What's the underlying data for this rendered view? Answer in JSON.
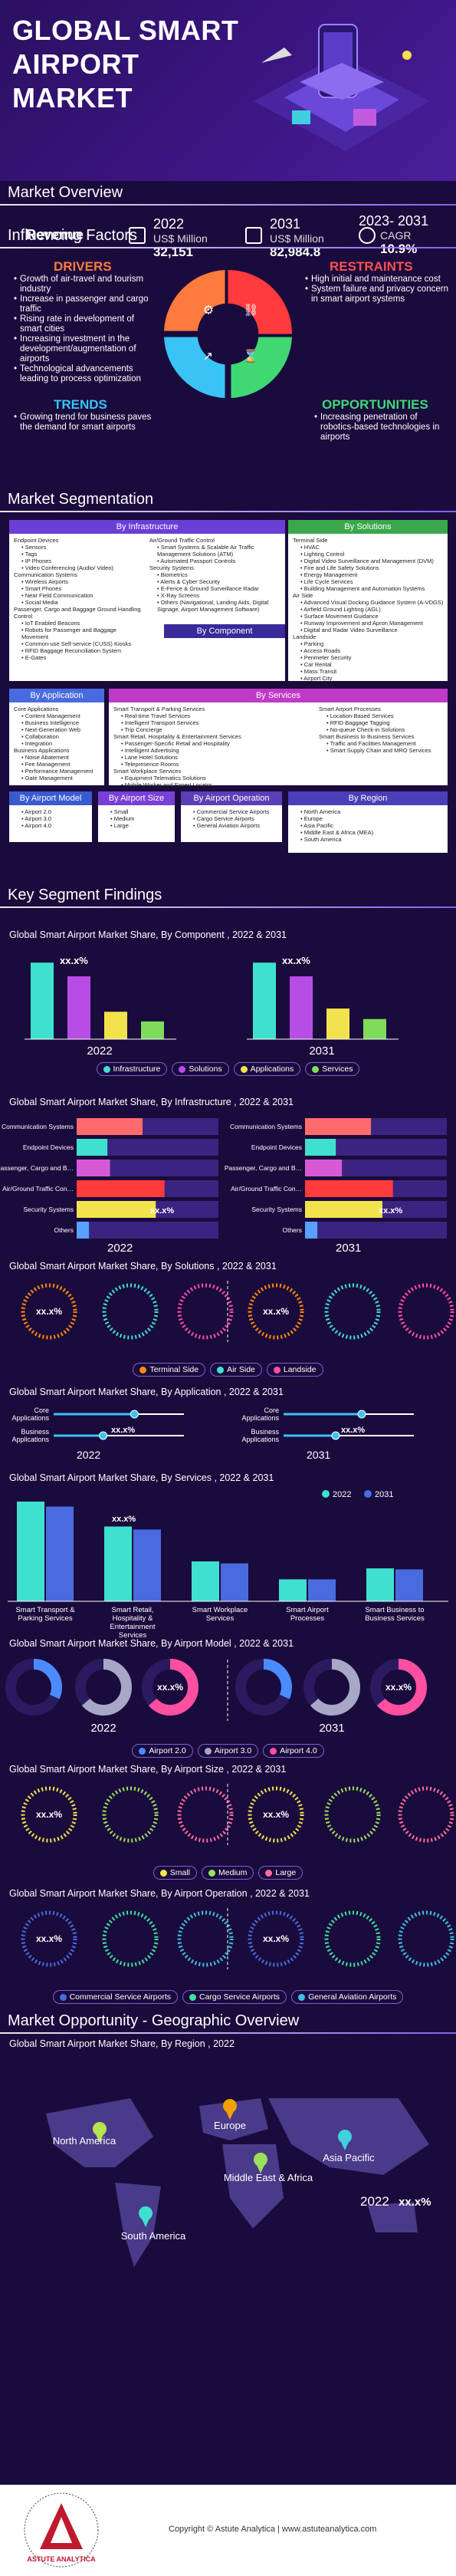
{
  "title": [
    "GLOBAL SMART",
    "AIRPORT",
    "MARKET"
  ],
  "sections": {
    "overview": "Market Overview",
    "factors": "Influencing Factors",
    "segmentation": "Market Segmentation",
    "findings": "Key Segment Findings",
    "geo": "Market Opportunity - Geographic Overview"
  },
  "overview": {
    "label": "Revenue",
    "items": [
      {
        "year": "2022",
        "unit": "US$ Million",
        "value": "32,151"
      },
      {
        "year": "2031",
        "unit": "US$ Million",
        "value": "82,984.8"
      },
      {
        "year": "2023- 2031",
        "unit": "CAGR",
        "value": "10.9%"
      }
    ]
  },
  "factors": {
    "drivers": {
      "head": "DRIVERS",
      "items": [
        "Growth of air-travel and tourism industry",
        "Increase in passenger and cargo traffic",
        "Rising rate in development of smart cities",
        "Increasing investment in the development/augmentation of airports",
        "Technological advancements leading to process optimization"
      ]
    },
    "restraints": {
      "head": "RESTRAINTS",
      "items": [
        "High initial and maintenance cost",
        "System failure and privacy concern in smart airport systems"
      ]
    },
    "trends": {
      "head": "TRENDS",
      "items": [
        "Growing trend for business paves the demand for smart airports"
      ]
    },
    "opportunities": {
      "head": "OPPORTUNITIES",
      "items": [
        "Increasing penetration of robotics-based technologies in airports"
      ]
    }
  },
  "segmentation": {
    "infra": {
      "head": "By Infrastructure",
      "col1": [
        "Endpoint Devices",
        "  - Sensors",
        "  - Tags",
        "  - IP Phones",
        "  - Video Conferencing (Audio/ Video)",
        "Communication Systems",
        "  - Wireless Airports",
        "  - Smart Phones",
        "  - Near Field Communication",
        "  - Social Media",
        "Passenger, Cargo and Baggage Ground Handling Control",
        "  - IoT Enabled Beacons",
        "  - Robots for Passenger and Baggage Movement",
        "  - Common-use Self-service (CUSS) Kiosks",
        "  - RFID Baggage Reconciliation System",
        "  - E-Gates"
      ],
      "col2": [
        "Air/Ground Traffic Control",
        "  - Smart Systems & Scalable Air Traffic Management Solutions (ATM)",
        "  - Automated Passport Controls",
        "Security Systems",
        "  - Biometrics",
        "  - Alerts & Cyber Security",
        "  - E-Fence & Ground Surveillance Radar",
        "  - X-Ray Screens",
        "  - Others (Navigational, Landing Aids, Digital Signage, Airport Management Software)"
      ]
    },
    "solutions": {
      "head": "By Solutions",
      "items": [
        "Terminal Side",
        "  - HVAC",
        "  - Lighting Control",
        "  - Digital Video Surveillance and Management (DVM)",
        "  - Fire and Life Safety Solutions",
        "  - Energy Management",
        "  - Life Cycle Services",
        "  - Building Management and Automation Systems",
        "Air Side",
        "  - Advanced Visual Docking Guidance System (A-VDGS)",
        "  - Airfield Ground Lighting (AGL)",
        "  - Surface Movement Guidance",
        "  - Runway Improvement and Apron Management",
        "  - Digital and Radar Video Surveillance",
        "Landside",
        "  - Parking",
        "  - Access Roads",
        "  - Perimeter Security",
        "  - Car Rental",
        "  - Mass Transit",
        "  - Airport City"
      ]
    },
    "component": {
      "head": "By Component",
      "items": [
        "Infrastructure",
        "Solutions",
        "Applications",
        "Services"
      ]
    },
    "application": {
      "head": "By Application",
      "items": [
        "Core Applications",
        "  - Content Management",
        "  - Business Intelligence",
        "  - Next-Generation Web",
        "  - Collaboration",
        "  - Integration",
        "Business Applications",
        "  - Noise Abatement",
        "  - Fee Management",
        "  - Performance Management",
        "  - Gate Management"
      ]
    },
    "services": {
      "head": "By Services",
      "col1": [
        "Smart Transport & Parking Services",
        "  - Real-time Travel Services",
        "  - Intelligent Transport Services",
        "  - Trip Concierge",
        "Smart Retail, Hospitality & Entertainment Services",
        "  - Passenger-Specific Retail and Hospitality",
        "  - Intelligent Advertising",
        "  - Lane Hotel Solutions",
        "  - Telepresence Rooms",
        "Smart Workplace Services",
        "  - Equipment Telematics Solutions",
        "  - Mobile Worker and Expert Locator"
      ],
      "col2": [
        "Smart Airport Processes",
        "  - Location-Based Services",
        "  - RFID Baggage Tagging",
        "  - No-queue Check-in Solutions",
        "Smart Business to Business Services",
        "  - Traffic and Facilities Management",
        "  - Smart Supply Chain and MRO Services"
      ]
    },
    "model": {
      "head": "By Airport Model",
      "items": [
        "Airport 2.0",
        "Airport 3.0",
        "Airport 4.0"
      ]
    },
    "size": {
      "head": "By Airport Size",
      "items": [
        "Small",
        "Medium",
        "Large"
      ]
    },
    "operation": {
      "head": "By Airport Operation",
      "items": [
        "Commercial Service Airports",
        "Cargo Service Airports",
        "General Aviation Airports"
      ]
    },
    "region": {
      "head": "By Region",
      "items": [
        "North America",
        "Europe",
        "Asia Pacific",
        "Middle East & Africa (MEA)",
        "South America"
      ]
    }
  },
  "placeholder": "xx.x%",
  "chart_data": [
    {
      "type": "bar",
      "title": "Global Smart Airport Market Share, By Component , 2022 & 2031",
      "groups": [
        "2022",
        "2031"
      ],
      "categories": [
        "Infrastructure",
        "Solutions",
        "Applications",
        "Services"
      ],
      "series": [
        {
          "name": "2022",
          "values": [
            95,
            78,
            34,
            22
          ]
        },
        {
          "name": "2031",
          "values": [
            95,
            78,
            38,
            25
          ]
        }
      ],
      "colors": [
        "#40e0d0",
        "#b84de6",
        "#f2e34c",
        "#7fdc5a"
      ],
      "label": "xx.x%"
    },
    {
      "type": "bar",
      "title": "Global Smart Airport Market Share, By Infrastructure , 2022 & 2031",
      "categories": [
        "Communication Systems",
        "Endpoint Devices",
        "Passenger, Cargo and Baggage Ground Handling Control",
        "Air/Ground Traffic Control",
        "Security Systems",
        "Others"
      ],
      "series": [
        {
          "name": "2022",
          "values": [
            75,
            35,
            38,
            100,
            90,
            14
          ]
        },
        {
          "name": "2031",
          "values": [
            75,
            35,
            42,
            100,
            88,
            14
          ]
        }
      ],
      "colors": [
        "#ff6b6b",
        "#40e0d0",
        "#d65ad6",
        "#ff3b3b",
        "#f2e34c",
        "#5aa0ff"
      ],
      "label": "xx.x%"
    },
    {
      "type": "pie",
      "title": "Global Smart Airport Market Share, By Solutions , 2022 & 2031",
      "categories": [
        "Terminal Side",
        "Air Side",
        "Landside"
      ],
      "colors": [
        "#ff8a00",
        "#40e0d0",
        "#ff4fa0"
      ],
      "label": "xx.x%"
    },
    {
      "type": "bar",
      "title": "Global Smart Airport Market Share, By Application , 2022 & 2031",
      "categories": [
        "Core Applications",
        "Business Applications"
      ],
      "series": [
        {
          "name": "2022",
          "values": [
            62,
            38
          ]
        },
        {
          "name": "2031",
          "values": [
            60,
            40
          ]
        }
      ],
      "label": "xx.x%"
    },
    {
      "type": "bar",
      "title": "Global Smart Airport Market Share, By Services , 2022 & 2031",
      "categories": [
        "Smart Transport & Parking Services",
        "Smart Retail, Hospitality & Entertainment Services",
        "Smart Workplace Services",
        "Smart Airport Processes",
        "Smart Business to Business Services"
      ],
      "series": [
        {
          "name": "2022",
          "values": [
            100,
            75,
            40,
            22,
            33
          ]
        },
        {
          "name": "2031",
          "values": [
            95,
            72,
            38,
            22,
            32
          ]
        }
      ],
      "colors": [
        "#40e0d0",
        "#4a6be0"
      ],
      "label": "xx.x%"
    },
    {
      "type": "pie",
      "title": "Global Smart Airport Market Share, By Airport Model , 2022 & 2031",
      "categories": [
        "Airport 2.0",
        "Airport 3.0",
        "Airport 4.0"
      ],
      "colors": [
        "#4a8cff",
        "#a7a7c8",
        "#ff4fa0"
      ],
      "label": "xx.x%"
    },
    {
      "type": "pie",
      "title": "Global Smart Airport Market Share, By Airport Size , 2022 & 2031",
      "categories": [
        "Small",
        "Medium",
        "Large"
      ],
      "colors": [
        "#f2e34c",
        "#9be05a",
        "#ff6b9a"
      ],
      "label": "xx.x%"
    },
    {
      "type": "pie",
      "title": "Global Smart Airport Market Share, By Airport Operation , 2022 & 2031",
      "categories": [
        "Commercial Service Airports",
        "Cargo Service Airports",
        "General Aviation Airports"
      ],
      "colors": [
        "#4a6be0",
        "#40e0a0",
        "#40c0e0"
      ],
      "label": "xx.x%"
    }
  ],
  "geo": {
    "subtitle": "Global Smart Airport Market Share, By Region , 2022",
    "regions": [
      "North America",
      "Europe",
      "Middle East & Africa",
      "Asia Pacific",
      "South America"
    ],
    "year": "2022",
    "value": "xx.x%"
  },
  "footer": {
    "text": "Copyright © Astute Analytica | www.astuteanalytica.com",
    "brand": "ASTUTE ANALYTICA",
    "ring": "Beyond Data | Guided by Strategy"
  }
}
